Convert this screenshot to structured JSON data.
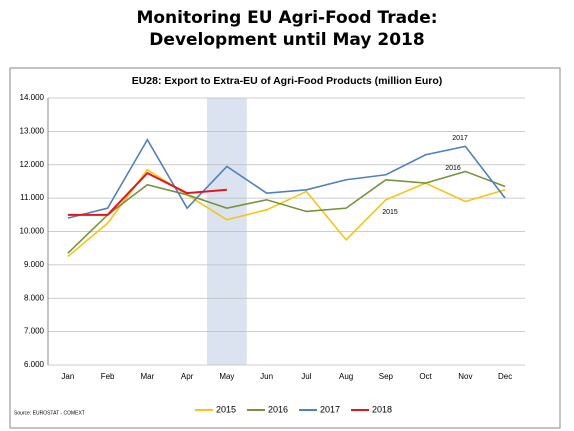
{
  "title": "Monitoring EU Agri-Food Trade:",
  "subtitle": "Development until May 2018",
  "chart_data": {
    "type": "line",
    "title": "EU28: Export to Extra-EU of Agri-Food Products (million Euro)",
    "categories": [
      "Jan",
      "Feb",
      "Mar",
      "Apr",
      "May",
      "Jun",
      "Jul",
      "Aug",
      "Sep",
      "Oct",
      "Nov",
      "Dec"
    ],
    "series": [
      {
        "name": "2015",
        "color": "#f5c518",
        "values": [
          9250,
          10250,
          11850,
          11100,
          10350,
          10650,
          11200,
          9750,
          10950,
          11450,
          10900,
          11250
        ]
      },
      {
        "name": "2016",
        "color": "#77933c",
        "values": [
          9350,
          10500,
          11400,
          11100,
          10700,
          10950,
          10600,
          10700,
          11550,
          11450,
          11800,
          11350
        ]
      },
      {
        "name": "2017",
        "color": "#4f81bd",
        "values": [
          10400,
          10700,
          12750,
          10700,
          11950,
          11150,
          11250,
          11550,
          11700,
          12300,
          12550,
          11000
        ]
      },
      {
        "name": "2018",
        "color": "#e8141c",
        "values": [
          10500,
          10500,
          11750,
          11150,
          11250,
          null,
          null,
          null,
          null,
          null,
          null,
          null
        ]
      }
    ],
    "ylim": [
      6000,
      14000
    ],
    "yticks": [
      {
        "value": 6000,
        "label": "6.000"
      },
      {
        "value": 7000,
        "label": "7.000"
      },
      {
        "value": 8000,
        "label": "8.000"
      },
      {
        "value": 9000,
        "label": "9.000"
      },
      {
        "value": 10000,
        "label": "10.000"
      },
      {
        "value": 11000,
        "label": "11.000"
      },
      {
        "value": 12000,
        "label": "12.000"
      },
      {
        "value": 13000,
        "label": "13.000"
      },
      {
        "value": 14000,
        "label": "14.000"
      }
    ],
    "grid": true,
    "highlight": "May",
    "legend": "bottom",
    "annotations": [
      "2017",
      "2016",
      "2015"
    ],
    "source": "Source: EUROSTAT - COMEXT"
  }
}
